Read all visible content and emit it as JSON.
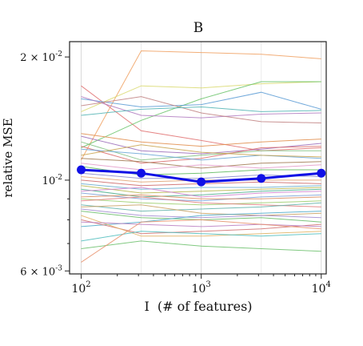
{
  "chart_data": {
    "type": "line",
    "title": "B",
    "xlabel": "I  (# of features)",
    "ylabel": "relative MSE",
    "x_scale": "log",
    "y_scale": "log",
    "xlim": [
      80,
      11000
    ],
    "ylim": [
      0.0059,
      0.0218
    ],
    "x": [
      100,
      316,
      1000,
      3162,
      10000
    ],
    "x_ticks": [
      {
        "value": 100,
        "base": "10",
        "exp": "2"
      },
      {
        "value": 1000,
        "base": "10",
        "exp": "3"
      },
      {
        "value": 10000,
        "base": "10",
        "exp": "4"
      }
    ],
    "y_ticks": [
      {
        "value": 0.02,
        "mant": "2 × ",
        "base": "10",
        "exp": "-2"
      },
      {
        "value": 0.01,
        "mant": "",
        "base": "10",
        "exp": "-2"
      },
      {
        "value": 0.006,
        "mant": "6 × ",
        "base": "10",
        "exp": "-3"
      }
    ],
    "grid": true,
    "mean_series": {
      "color": "#1010e6",
      "values": [
        0.0106,
        0.0104,
        0.0099,
        0.0101,
        0.0104
      ]
    },
    "series": [
      {
        "color": "#f0a060",
        "values": [
          0.0112,
          0.0207,
          0.0205,
          0.0203,
          0.0198
        ]
      },
      {
        "color": "#e07070",
        "values": [
          0.017,
          0.0132,
          0.0125,
          0.0118,
          0.012
        ]
      },
      {
        "color": "#d9d96e",
        "values": [
          0.0147,
          0.017,
          0.0168,
          0.0172,
          0.0174
        ]
      },
      {
        "color": "#66c266",
        "values": [
          0.012,
          0.014,
          0.0158,
          0.0174,
          0.0174
        ]
      },
      {
        "color": "#5b9bd5",
        "values": [
          0.0158,
          0.0151,
          0.0153,
          0.0164,
          0.0149
        ]
      },
      {
        "color": "#b07ac0",
        "values": [
          0.016,
          0.0144,
          0.0142,
          0.0145,
          0.0146
        ]
      },
      {
        "color": "#c08080",
        "values": [
          0.0152,
          0.016,
          0.0146,
          0.0139,
          0.0138
        ]
      },
      {
        "color": "#4fb3b3",
        "values": [
          0.0144,
          0.0149,
          0.0151,
          0.0147,
          0.0148
        ]
      },
      {
        "color": "#e08c4a",
        "values": [
          0.013,
          0.0124,
          0.0121,
          0.0124,
          0.0126
        ]
      },
      {
        "color": "#9a6ab8",
        "values": [
          0.0128,
          0.0118,
          0.0116,
          0.0119,
          0.0123
        ]
      },
      {
        "color": "#7fbf7f",
        "values": [
          0.0124,
          0.0112,
          0.0115,
          0.0118,
          0.0118
        ]
      },
      {
        "color": "#d96b6b",
        "values": [
          0.0121,
          0.011,
          0.0113,
          0.012,
          0.0121
        ]
      },
      {
        "color": "#6aa6d6",
        "values": [
          0.0119,
          0.0116,
          0.0112,
          0.0115,
          0.0113
        ]
      },
      {
        "color": "#c9a34e",
        "values": [
          0.0115,
          0.0122,
          0.0117,
          0.0115,
          0.0114
        ]
      },
      {
        "color": "#a07850",
        "values": [
          0.0113,
          0.0111,
          0.0107,
          0.011,
          0.0111
        ]
      },
      {
        "color": "#e39ac8",
        "values": [
          0.011,
          0.0106,
          0.0109,
          0.0107,
          0.0109
        ]
      },
      {
        "color": "#5cb85c",
        "values": [
          0.0108,
          0.0103,
          0.0104,
          0.0106,
          0.0106
        ]
      },
      {
        "color": "#8888cc",
        "values": [
          0.0104,
          0.0101,
          0.0101,
          0.0103,
          0.0102
        ]
      },
      {
        "color": "#e0a070",
        "values": [
          0.0102,
          0.0099,
          0.01,
          0.01,
          0.01
        ]
      },
      {
        "color": "#cc6666",
        "values": [
          0.01,
          0.0097,
          0.0098,
          0.0099,
          0.0098
        ]
      },
      {
        "color": "#66aacc",
        "values": [
          0.0098,
          0.0095,
          0.0096,
          0.0096,
          0.0097
        ]
      },
      {
        "color": "#b5b54a",
        "values": [
          0.0097,
          0.0093,
          0.0094,
          0.0095,
          0.0096
        ]
      },
      {
        "color": "#4cae8c",
        "values": [
          0.0095,
          0.0091,
          0.0092,
          0.0094,
          0.0095
        ]
      },
      {
        "color": "#cf7fcf",
        "values": [
          0.0094,
          0.0096,
          0.0091,
          0.0093,
          0.0094
        ]
      },
      {
        "color": "#7aa0d8",
        "values": [
          0.0093,
          0.009,
          0.0089,
          0.0091,
          0.0092
        ]
      },
      {
        "color": "#d88a5a",
        "values": [
          0.0091,
          0.0092,
          0.009,
          0.009,
          0.0091
        ]
      },
      {
        "color": "#9acd6a",
        "values": [
          0.009,
          0.0088,
          0.0087,
          0.0088,
          0.0089
        ]
      },
      {
        "color": "#e07a7a",
        "values": [
          0.0089,
          0.0091,
          0.0088,
          0.0087,
          0.0086
        ]
      },
      {
        "color": "#5fb0a8",
        "values": [
          0.0087,
          0.0084,
          0.0085,
          0.0086,
          0.0088
        ]
      },
      {
        "color": "#c8a060",
        "values": [
          0.0086,
          0.0087,
          0.0083,
          0.0082,
          0.0083
        ]
      },
      {
        "color": "#a08ad0",
        "values": [
          0.0085,
          0.0082,
          0.0081,
          0.0082,
          0.0081
        ]
      },
      {
        "color": "#66bb66",
        "values": [
          0.0084,
          0.0081,
          0.008,
          0.0081,
          0.0079
        ]
      },
      {
        "color": "#4aa8c8",
        "values": [
          0.0077,
          0.0079,
          0.0082,
          0.0083,
          0.0084
        ]
      },
      {
        "color": "#d07070",
        "values": [
          0.008,
          0.0074,
          0.0075,
          0.0076,
          0.0078
        ]
      },
      {
        "color": "#e0b060",
        "values": [
          0.0082,
          0.0073,
          0.0073,
          0.0074,
          0.0075
        ]
      },
      {
        "color": "#b87bbf",
        "values": [
          0.0079,
          0.0078,
          0.0077,
          0.0078,
          0.0077
        ]
      },
      {
        "color": "#4cbcbc",
        "values": [
          0.0071,
          0.0075,
          0.0074,
          0.0073,
          0.0074
        ]
      },
      {
        "color": "#6bbf6b",
        "values": [
          0.0068,
          0.0071,
          0.0069,
          0.0068,
          0.0067
        ]
      },
      {
        "color": "#e88f6a",
        "values": [
          0.0063,
          0.0079,
          0.008,
          0.0078,
          0.0076
        ]
      }
    ]
  }
}
